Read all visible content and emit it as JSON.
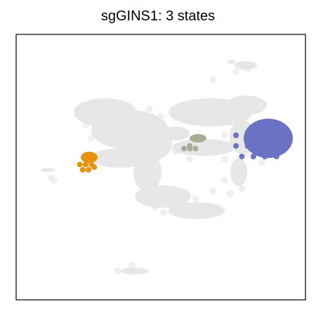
{
  "chart_data": {
    "type": "scatter",
    "title": "sgGINS1: 3 states",
    "xlabel": "",
    "ylabel": "",
    "grid": false,
    "axes_ticks": false,
    "background_color": "#e6e6e6",
    "series": [
      {
        "color": "#e6e6e6",
        "points": [
          [
            0.24,
            0.66
          ],
          [
            0.3,
            0.69
          ],
          [
            0.36,
            0.7
          ],
          [
            0.42,
            0.68
          ],
          [
            0.48,
            0.66
          ],
          [
            0.26,
            0.61
          ],
          [
            0.32,
            0.6
          ],
          [
            0.38,
            0.59
          ],
          [
            0.44,
            0.59
          ],
          [
            0.5,
            0.58
          ],
          [
            0.3,
            0.55
          ],
          [
            0.36,
            0.54
          ],
          [
            0.4,
            0.52
          ],
          [
            0.44,
            0.5
          ],
          [
            0.46,
            0.46
          ],
          [
            0.45,
            0.42
          ],
          [
            0.46,
            0.38
          ],
          [
            0.48,
            0.35
          ],
          [
            0.51,
            0.33
          ],
          [
            0.55,
            0.33
          ],
          [
            0.62,
            0.38
          ],
          [
            0.68,
            0.41
          ],
          [
            0.72,
            0.45
          ],
          [
            0.74,
            0.4
          ],
          [
            0.78,
            0.42
          ],
          [
            0.55,
            0.56
          ],
          [
            0.6,
            0.53
          ],
          [
            0.67,
            0.59
          ],
          [
            0.72,
            0.62
          ],
          [
            0.78,
            0.66
          ],
          [
            0.83,
            0.66
          ],
          [
            0.87,
            0.63
          ],
          [
            0.72,
            0.53
          ],
          [
            0.8,
            0.55
          ],
          [
            0.85,
            0.52
          ],
          [
            0.13,
            0.45
          ],
          [
            0.12,
            0.46
          ],
          [
            0.35,
            0.11
          ],
          [
            0.4,
            0.13
          ],
          [
            0.78,
            0.45
          ],
          [
            0.76,
            0.86
          ],
          [
            0.8,
            0.87
          ],
          [
            0.68,
            0.83
          ],
          [
            0.5,
            0.69
          ],
          [
            0.46,
            0.72
          ]
        ]
      },
      {
        "color": "#6a72c4",
        "points": [
          [
            0.76,
            0.62
          ],
          [
            0.8,
            0.63
          ],
          [
            0.84,
            0.62
          ],
          [
            0.88,
            0.61
          ],
          [
            0.92,
            0.6
          ],
          [
            0.76,
            0.58
          ],
          [
            0.8,
            0.58
          ],
          [
            0.84,
            0.58
          ],
          [
            0.88,
            0.58
          ],
          [
            0.92,
            0.57
          ],
          [
            0.78,
            0.54
          ],
          [
            0.82,
            0.54
          ],
          [
            0.86,
            0.54
          ],
          [
            0.9,
            0.54
          ],
          [
            0.84,
            0.65
          ]
        ]
      },
      {
        "color": "#e8930f",
        "points": [
          [
            0.22,
            0.51
          ],
          [
            0.24,
            0.51
          ],
          [
            0.26,
            0.51
          ],
          [
            0.23,
            0.49
          ],
          [
            0.25,
            0.49
          ],
          [
            0.27,
            0.5
          ]
        ]
      },
      {
        "color": "#a8ad96",
        "points": [
          [
            0.58,
            0.57
          ],
          [
            0.6,
            0.57
          ],
          [
            0.62,
            0.57
          ],
          [
            0.6,
            0.58
          ]
        ]
      }
    ],
    "xlim": [
      0,
      1
    ],
    "ylim": [
      0,
      1
    ]
  }
}
